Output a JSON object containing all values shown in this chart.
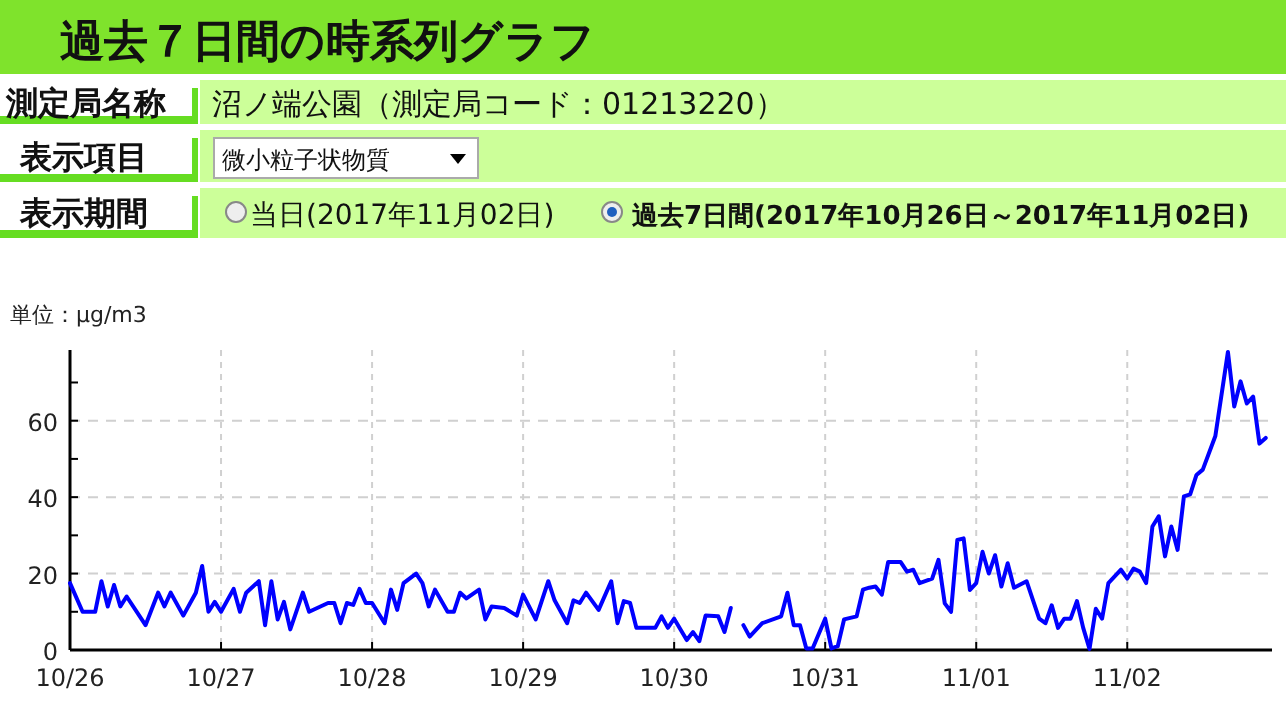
{
  "chart_data": {
    "type": "line",
    "title": "過去７日間の時系列グラフ",
    "ylabel": "単位：μg/m3",
    "annotations": [
      "測定局名称",
      "沼ノ端公園（測定局コード：01213220）",
      "表示項目",
      "微小粒子状物質",
      "表示期間",
      "当日(2017年11月02日)",
      "過去7日間(2017年10月26日～2017年11月02日)"
    ],
    "series": [
      {
        "color": "#0000ff",
        "x": [
          "2017-10-26T00:00",
          "2017-10-26T02:00",
          "2017-10-26T04:00",
          "2017-10-26T05:00",
          "2017-10-26T06:00",
          "2017-10-26T07:00",
          "2017-10-26T08:00",
          "2017-10-26T09:00",
          "2017-10-26T12:00",
          "2017-10-26T14:00",
          "2017-10-26T15:00",
          "2017-10-26T16:00",
          "2017-10-26T18:00",
          "2017-10-26T20:00",
          "2017-10-26T21:00",
          "2017-10-26T22:00",
          "2017-10-26T23:00",
          "2017-10-27T00:00",
          "2017-10-27T02:00",
          "2017-10-27T03:00",
          "2017-10-27T04:00",
          "2017-10-27T06:00",
          "2017-10-27T07:00",
          "2017-10-27T08:00",
          "2017-10-27T09:00",
          "2017-10-27T10:00",
          "2017-10-27T11:00",
          "2017-10-27T13:00",
          "2017-10-27T14:00",
          "2017-10-27T17:00",
          "2017-10-27T18:00",
          "2017-10-27T19:00",
          "2017-10-27T20:00",
          "2017-10-27T21:00",
          "2017-10-27T22:00",
          "2017-10-27T23:00",
          "2017-10-28T00:00",
          "2017-10-28T02:00",
          "2017-10-28T03:00",
          "2017-10-28T04:00",
          "2017-10-28T05:00",
          "2017-10-28T07:00",
          "2017-10-28T08:00",
          "2017-10-28T09:00",
          "2017-10-28T10:00",
          "2017-10-28T12:00",
          "2017-10-28T13:00",
          "2017-10-28T14:00",
          "2017-10-28T15:00",
          "2017-10-28T17:00",
          "2017-10-28T18:00",
          "2017-10-28T19:00",
          "2017-10-28T21:00",
          "2017-10-28T23:00",
          "2017-10-29T00:00",
          "2017-10-29T02:00",
          "2017-10-29T04:00",
          "2017-10-29T05:00",
          "2017-10-29T07:00",
          "2017-10-29T08:00",
          "2017-10-29T09:00",
          "2017-10-29T10:00",
          "2017-10-29T12:00",
          "2017-10-29T14:00",
          "2017-10-29T15:00",
          "2017-10-29T16:00",
          "2017-10-29T17:00",
          "2017-10-29T18:00",
          "2017-10-29T21:00",
          "2017-10-29T22:00",
          "2017-10-29T23:00",
          "2017-10-30T00:00",
          "2017-10-30T02:00",
          "2017-10-30T03:00",
          "2017-10-30T04:00",
          "2017-10-30T05:00",
          "2017-10-30T07:00",
          "2017-10-30T08:00",
          "2017-10-30T09:00"
        ],
        "values": [
          17.5,
          10,
          10,
          18,
          11.4,
          17,
          11.4,
          14,
          6.5,
          15,
          11.4,
          15,
          9,
          15,
          22,
          10,
          12.6,
          10,
          16,
          10,
          15,
          18,
          6.5,
          18,
          8,
          12.6,
          5.4,
          15,
          10,
          12.3,
          12.3,
          7,
          12.3,
          11.8,
          16,
          12.3,
          12.3,
          7,
          15.8,
          10.5,
          17.5,
          20,
          17.5,
          11.4,
          15.8,
          10,
          10,
          15,
          13.5,
          15.8,
          8,
          11.4,
          11,
          9,
          14.5,
          8,
          18,
          13,
          7,
          13,
          12.3,
          15,
          10.5,
          18,
          7,
          12.8,
          12.3,
          5.8,
          5.8,
          8.8,
          5.8,
          8.2,
          2.6,
          4.7,
          2.3,
          9,
          8.8,
          4.7,
          11
        ]
      },
      {
        "color": "#0000ff",
        "x": [
          "2017-10-30T11:00",
          "2017-10-30T12:00",
          "2017-10-30T14:00",
          "2017-10-30T17:00",
          "2017-10-30T18:00",
          "2017-10-30T19:00",
          "2017-10-30T20:00",
          "2017-10-30T21:00",
          "2017-10-30T22:00",
          "2017-10-31T00:00",
          "2017-10-31T01:00",
          "2017-10-31T02:00",
          "2017-10-31T03:00",
          "2017-10-31T05:00",
          "2017-10-31T06:00",
          "2017-10-31T07:00",
          "2017-10-31T08:00",
          "2017-10-31T09:00",
          "2017-10-31T10:00",
          "2017-10-31T12:00",
          "2017-10-31T13:00",
          "2017-10-31T14:00",
          "2017-10-31T15:00",
          "2017-10-31T17:00",
          "2017-10-31T18:00",
          "2017-10-31T19:00",
          "2017-10-31T20:00",
          "2017-10-31T21:00",
          "2017-10-31T22:00",
          "2017-10-31T23:00",
          "2017-11-01T00:00",
          "2017-11-01T01:00",
          "2017-11-01T02:00",
          "2017-11-01T03:00",
          "2017-11-01T04:00",
          "2017-11-01T05:00",
          "2017-11-01T06:00",
          "2017-11-01T08:00",
          "2017-11-01T10:00",
          "2017-11-01T11:00",
          "2017-11-01T12:00",
          "2017-11-01T13:00",
          "2017-11-01T14:00",
          "2017-11-01T15:00",
          "2017-11-01T16:00",
          "2017-11-01T17:00",
          "2017-11-01T18:00",
          "2017-11-01T19:00",
          "2017-11-01T20:00",
          "2017-11-01T21:00",
          "2017-11-01T23:00",
          "2017-11-02T00:00",
          "2017-11-02T01:00",
          "2017-11-02T02:00",
          "2017-11-02T03:00",
          "2017-11-02T04:00",
          "2017-11-02T05:00",
          "2017-11-02T06:00",
          "2017-11-02T07:00",
          "2017-11-02T08:00",
          "2017-11-02T09:00",
          "2017-11-02T10:00",
          "2017-11-02T11:00",
          "2017-11-02T12:00",
          "2017-11-02T14:00",
          "2017-11-02T16:00",
          "2017-11-02T17:00",
          "2017-11-02T18:00",
          "2017-11-02T19:00",
          "2017-11-02T20:00",
          "2017-11-02T21:00",
          "2017-11-02T22:00"
        ],
        "values": [
          6.5,
          3.5,
          7,
          8.8,
          15,
          6.5,
          6.5,
          0.4,
          0.4,
          8.2,
          0.4,
          1,
          8,
          8.8,
          15.8,
          16.3,
          16.6,
          14.5,
          23,
          23,
          20.5,
          21,
          17.5,
          18.7,
          23.6,
          12.2,
          10,
          28.8,
          29.2,
          15.7,
          17.5,
          25.7,
          20,
          24.8,
          16.6,
          22.7,
          16.3,
          18,
          8.2,
          7,
          11.7,
          5.8,
          8.2,
          8.2,
          12.8,
          5.8,
          0.3,
          10.8,
          8.2,
          17.5,
          21,
          18.7,
          21.3,
          20.5,
          17.5,
          32.3,
          35,
          24.5,
          32.3,
          26.2,
          40.2,
          40.7,
          45.8,
          47.2,
          56,
          78,
          63.7,
          70.3,
          64.5,
          66.3,
          54,
          55.5
        ]
      }
    ],
    "xlim": [
      "2017-10-26T00:00",
      "2017-11-02T23:00"
    ],
    "xticks": [
      {
        "value": "2017-10-26",
        "label": "10/26"
      },
      {
        "value": "2017-10-27",
        "label": "10/27"
      },
      {
        "value": "2017-10-28",
        "label": "10/28"
      },
      {
        "value": "2017-10-29",
        "label": "10/29"
      },
      {
        "value": "2017-10-30",
        "label": "10/30"
      },
      {
        "value": "2017-10-31",
        "label": "10/31"
      },
      {
        "value": "2017-11-01",
        "label": "11/01"
      },
      {
        "value": "2017-11-02",
        "label": "11/02"
      }
    ],
    "ylim": [
      0,
      78.5
    ],
    "yticks": [
      0,
      {
        "value": 10,
        "label": null
      },
      20,
      {
        "value": 30,
        "label": null
      },
      40,
      {
        "value": 50,
        "label": null
      },
      60,
      {
        "value": 70,
        "label": null
      }
    ],
    "grid": true,
    "line_style": "solid"
  }
}
